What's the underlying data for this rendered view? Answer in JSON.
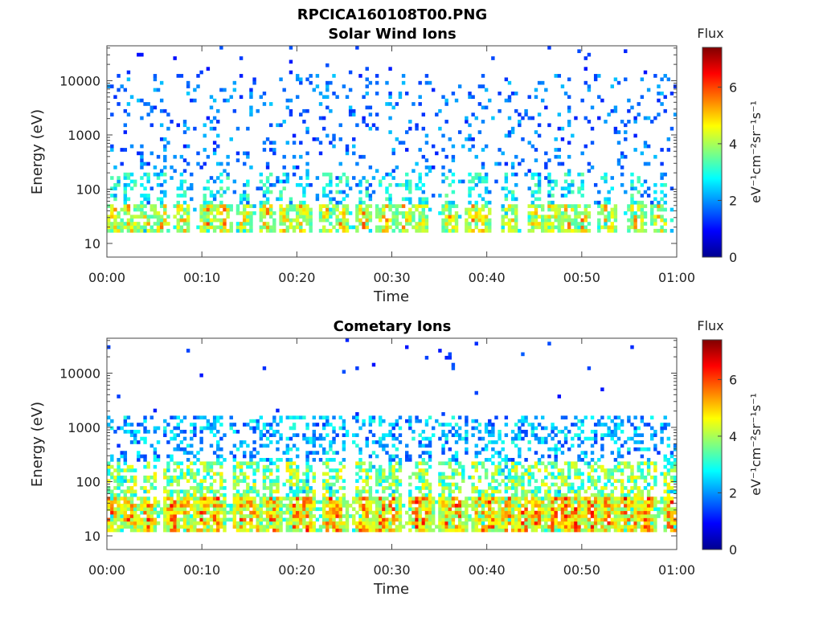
{
  "figure_title": "RPCICA160108T00.PNG",
  "chart_data": [
    {
      "type": "heatmap",
      "title": "Solar Wind Ions",
      "xlabel": "Time",
      "ylabel": "Energy (eV)",
      "x_ticks": [
        "00:00",
        "00:10",
        "00:20",
        "00:30",
        "00:40",
        "00:50",
        "01:00"
      ],
      "x_range_minutes": [
        0,
        60
      ],
      "y_scale": "log",
      "y_ticks": [
        10,
        100,
        1000,
        10000
      ],
      "y_range": [
        5.6,
        44000
      ],
      "colorbar": {
        "label": "Flux",
        "unit": "eV⁻¹cm⁻²sr⁻¹s⁻¹",
        "ticks": [
          0,
          2,
          4,
          6
        ],
        "range": [
          0,
          7.4
        ],
        "colormap": "jet"
      },
      "grid": false,
      "bursts_minutes": [
        0.8,
        2.4,
        4.1,
        5.8,
        7.9,
        10.6,
        12.3,
        14.4,
        16.8,
        18.9,
        20.6,
        23.2,
        24.7,
        27.1,
        29.3,
        31.4,
        33.1,
        36.2,
        38.6,
        39.6,
        42.4,
        45.2,
        46.9,
        48.6,
        50.1,
        52.7,
        55.8,
        58.2
      ]
    },
    {
      "type": "heatmap",
      "title": "Cometary Ions",
      "xlabel": "Time",
      "ylabel": "Energy (eV)",
      "x_ticks": [
        "00:00",
        "00:10",
        "00:20",
        "00:30",
        "00:40",
        "00:50",
        "01:00"
      ],
      "x_range_minutes": [
        0,
        60
      ],
      "y_scale": "log",
      "y_ticks": [
        10,
        100,
        1000,
        10000
      ],
      "y_range": [
        5.6,
        44000
      ],
      "colorbar": {
        "label": "Flux",
        "unit": "eV⁻¹cm⁻²sr⁻¹s⁻¹",
        "ticks": [
          0,
          2,
          4,
          6
        ],
        "range": [
          0,
          7.4
        ],
        "colormap": "jet"
      },
      "grid": false,
      "bursts_minutes": [
        0.5,
        2.4,
        4.4,
        6.9,
        8.1,
        10.1,
        11.6,
        14.1,
        15.3,
        17.4,
        19.9,
        21.1,
        23.5,
        24.3,
        26.9,
        29.0,
        30.0,
        32.6,
        33.4,
        35.9,
        36.9,
        39.4,
        40.4,
        42.2,
        43.8,
        45.2,
        47.1,
        48.3,
        49.4,
        51.0,
        52.8,
        54.6,
        55.8,
        56.9,
        59.5
      ]
    }
  ]
}
